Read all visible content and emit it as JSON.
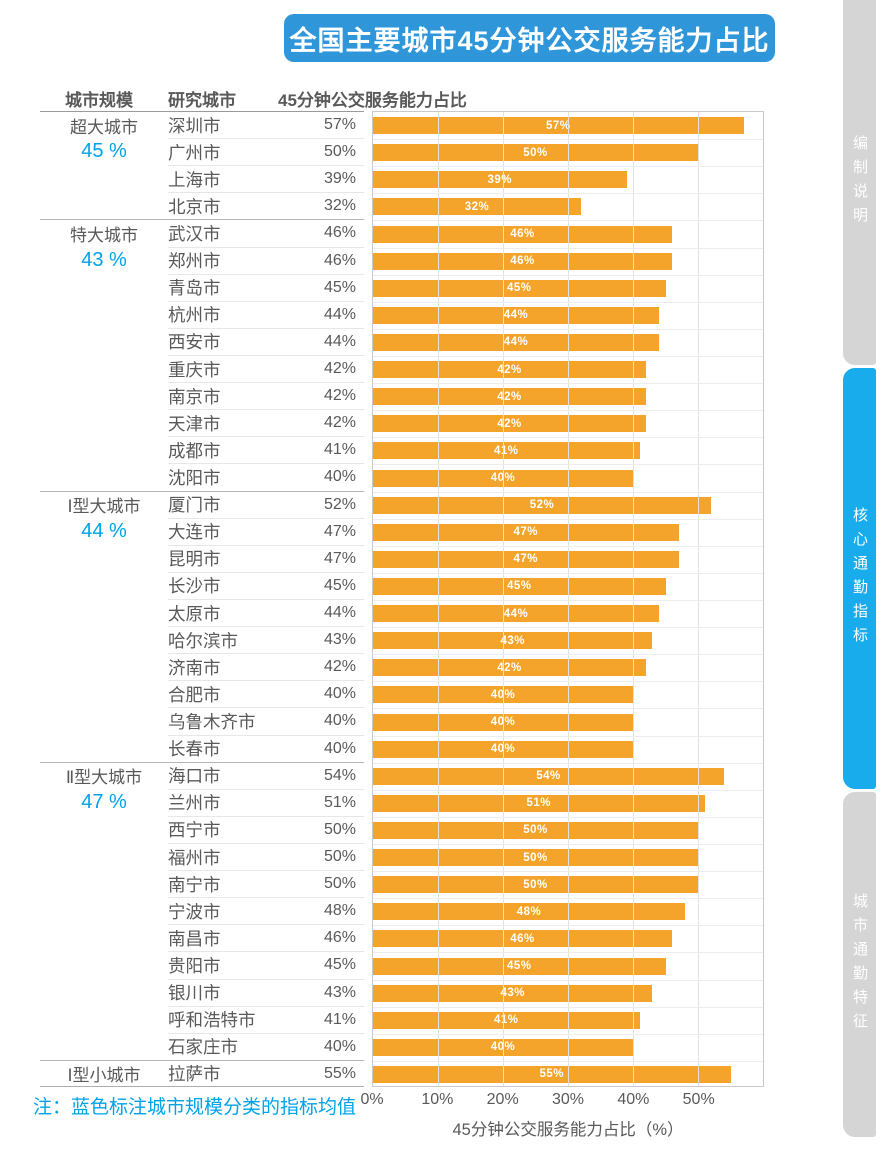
{
  "title": "全国主要城市45分钟公交服务能力占比",
  "table": {
    "headers": {
      "scale": "城市规模",
      "city": "研究城市",
      "metric": "45分钟公交服务能力占比"
    },
    "groups": [
      {
        "scale": "超大城市",
        "avg": "45 %",
        "cities": [
          {
            "name": "深圳市",
            "value": 57
          },
          {
            "name": "广州市",
            "value": 50
          },
          {
            "name": "上海市",
            "value": 39
          },
          {
            "name": "北京市",
            "value": 32
          }
        ]
      },
      {
        "scale": "特大城市",
        "avg": "43 %",
        "cities": [
          {
            "name": "武汉市",
            "value": 46
          },
          {
            "name": "郑州市",
            "value": 46
          },
          {
            "name": "青岛市",
            "value": 45
          },
          {
            "name": "杭州市",
            "value": 44
          },
          {
            "name": "西安市",
            "value": 44
          },
          {
            "name": "重庆市",
            "value": 42
          },
          {
            "name": "南京市",
            "value": 42
          },
          {
            "name": "天津市",
            "value": 42
          },
          {
            "name": "成都市",
            "value": 41
          },
          {
            "name": "沈阳市",
            "value": 40
          }
        ]
      },
      {
        "scale": "Ⅰ型大城市",
        "avg": "44 %",
        "cities": [
          {
            "name": "厦门市",
            "value": 52
          },
          {
            "name": "大连市",
            "value": 47
          },
          {
            "name": "昆明市",
            "value": 47
          },
          {
            "name": "长沙市",
            "value": 45
          },
          {
            "name": "太原市",
            "value": 44
          },
          {
            "name": "哈尔滨市",
            "value": 43
          },
          {
            "name": "济南市",
            "value": 42
          },
          {
            "name": "合肥市",
            "value": 40
          },
          {
            "name": "乌鲁木齐市",
            "value": 40
          },
          {
            "name": "长春市",
            "value": 40
          }
        ]
      },
      {
        "scale": "Ⅱ型大城市",
        "avg": "47 %",
        "cities": [
          {
            "name": "海口市",
            "value": 54
          },
          {
            "name": "兰州市",
            "value": 51
          },
          {
            "name": "西宁市",
            "value": 50
          },
          {
            "name": "福州市",
            "value": 50
          },
          {
            "name": "南宁市",
            "value": 50
          },
          {
            "name": "宁波市",
            "value": 48
          },
          {
            "name": "南昌市",
            "value": 46
          },
          {
            "name": "贵阳市",
            "value": 45
          },
          {
            "name": "银川市",
            "value": 43
          },
          {
            "name": "呼和浩特市",
            "value": 41
          },
          {
            "name": "石家庄市",
            "value": 40
          }
        ]
      },
      {
        "scale": "Ⅰ型小城市",
        "avg": null,
        "cities": [
          {
            "name": "拉萨市",
            "value": 55
          }
        ]
      }
    ]
  },
  "axis": {
    "ticks": [
      "0%",
      "10%",
      "20%",
      "30%",
      "40%",
      "50%"
    ],
    "tick_values": [
      0,
      10,
      20,
      30,
      40,
      50
    ],
    "max": 60,
    "label": "45分钟公交服务能力占比（%）"
  },
  "note": "注：蓝色标注城市规模分类的指标均值",
  "sidebar": {
    "tabs": [
      {
        "label": "编制说明",
        "active": false
      },
      {
        "label": "核心通勤指标",
        "active": true
      },
      {
        "label": "城市通勤特征",
        "active": false
      }
    ]
  },
  "colors": {
    "bar": "#F4A42A",
    "banner_blue": "#2E96D9",
    "accent_blue": "#00A2E8",
    "sidebar_active": "#18ACEC",
    "sidebar_inactive": "#D5D5D5",
    "text_gray": "#595959"
  },
  "chart_data": {
    "type": "bar",
    "orientation": "horizontal",
    "title": "全国主要城市45分钟公交服务能力占比",
    "categories": [
      "深圳市",
      "广州市",
      "上海市",
      "北京市",
      "武汉市",
      "郑州市",
      "青岛市",
      "杭州市",
      "西安市",
      "重庆市",
      "南京市",
      "天津市",
      "成都市",
      "沈阳市",
      "厦门市",
      "大连市",
      "昆明市",
      "长沙市",
      "太原市",
      "哈尔滨市",
      "济南市",
      "合肥市",
      "乌鲁木齐市",
      "长春市",
      "海口市",
      "兰州市",
      "西宁市",
      "福州市",
      "南宁市",
      "宁波市",
      "南昌市",
      "贵阳市",
      "银川市",
      "呼和浩特市",
      "石家庄市",
      "拉萨市"
    ],
    "values": [
      57,
      50,
      39,
      32,
      46,
      46,
      45,
      44,
      44,
      42,
      42,
      42,
      41,
      40,
      52,
      47,
      47,
      45,
      44,
      43,
      42,
      40,
      40,
      40,
      54,
      51,
      50,
      50,
      50,
      48,
      46,
      45,
      43,
      41,
      40,
      55
    ],
    "groups": [
      {
        "name": "超大城市",
        "average": 45,
        "cities": [
          "深圳市",
          "广州市",
          "上海市",
          "北京市"
        ]
      },
      {
        "name": "特大城市",
        "average": 43,
        "cities": [
          "武汉市",
          "郑州市",
          "青岛市",
          "杭州市",
          "西安市",
          "重庆市",
          "南京市",
          "天津市",
          "成都市",
          "沈阳市"
        ]
      },
      {
        "name": "Ⅰ型大城市",
        "average": 44,
        "cities": [
          "厦门市",
          "大连市",
          "昆明市",
          "长沙市",
          "太原市",
          "哈尔滨市",
          "济南市",
          "合肥市",
          "乌鲁木齐市",
          "长春市"
        ]
      },
      {
        "name": "Ⅱ型大城市",
        "average": 47,
        "cities": [
          "海口市",
          "兰州市",
          "西宁市",
          "福州市",
          "南宁市",
          "宁波市",
          "南昌市",
          "贵阳市",
          "银川市",
          "呼和浩特市",
          "石家庄市"
        ]
      },
      {
        "name": "Ⅰ型小城市",
        "average": null,
        "cities": [
          "拉萨市"
        ]
      }
    ],
    "xlabel": "45分钟公交服务能力占比（%）",
    "xlim": [
      0,
      60
    ],
    "xticks": [
      0,
      10,
      20,
      30,
      40,
      50
    ],
    "grid": true,
    "bar_color": "#F4A42A",
    "data_labels": "inside-center, white"
  }
}
